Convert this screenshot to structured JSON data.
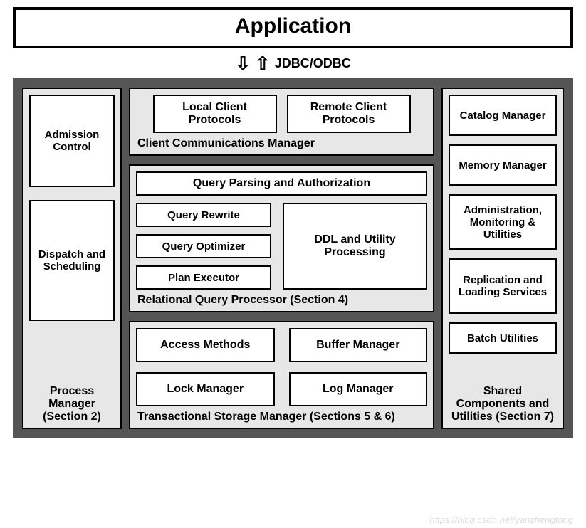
{
  "type": "architecture-diagram",
  "colors": {
    "outer_border": "#555555",
    "outer_bg": "#555555",
    "section_bg": "#e7e7e7",
    "box_bg": "#ffffff",
    "line": "#000000",
    "text": "#000000",
    "watermark": "#dcdcdc"
  },
  "application": {
    "label": "Application"
  },
  "connector": {
    "arrow_down": "⇩",
    "arrow_up": "⇧",
    "label": "JDBC/ODBC"
  },
  "left": {
    "title": "Process Manager (Section 2)",
    "boxes": {
      "admission": "Admission Control",
      "dispatch": "Dispatch and Scheduling"
    }
  },
  "middle": {
    "client_comm": {
      "title": "Client Communications Manager",
      "local": "Local Client Protocols",
      "remote": "Remote Client Protocols"
    },
    "query_proc": {
      "title": "Relational Query Processor (Section 4)",
      "top": "Query Parsing and Authorization",
      "rewrite": "Query Rewrite",
      "optimizer": "Query Optimizer",
      "executor": "Plan Executor",
      "ddl": "DDL and Utility Processing"
    },
    "storage": {
      "title": "Transactional Storage Manager (Sections 5 & 6)",
      "access": "Access Methods",
      "buffer": "Buffer Manager",
      "lock": "Lock Manager",
      "log": "Log Manager"
    }
  },
  "right": {
    "title": "Shared Components and Utilities (Section 7)",
    "catalog": "Catalog Manager",
    "memory": "Memory Manager",
    "admin": "Administration, Monitoring & Utilities",
    "replication": "Replication and Loading Services",
    "batch": "Batch Utilities"
  },
  "watermark": "https://blog.csdn.net/yanzhengtong"
}
